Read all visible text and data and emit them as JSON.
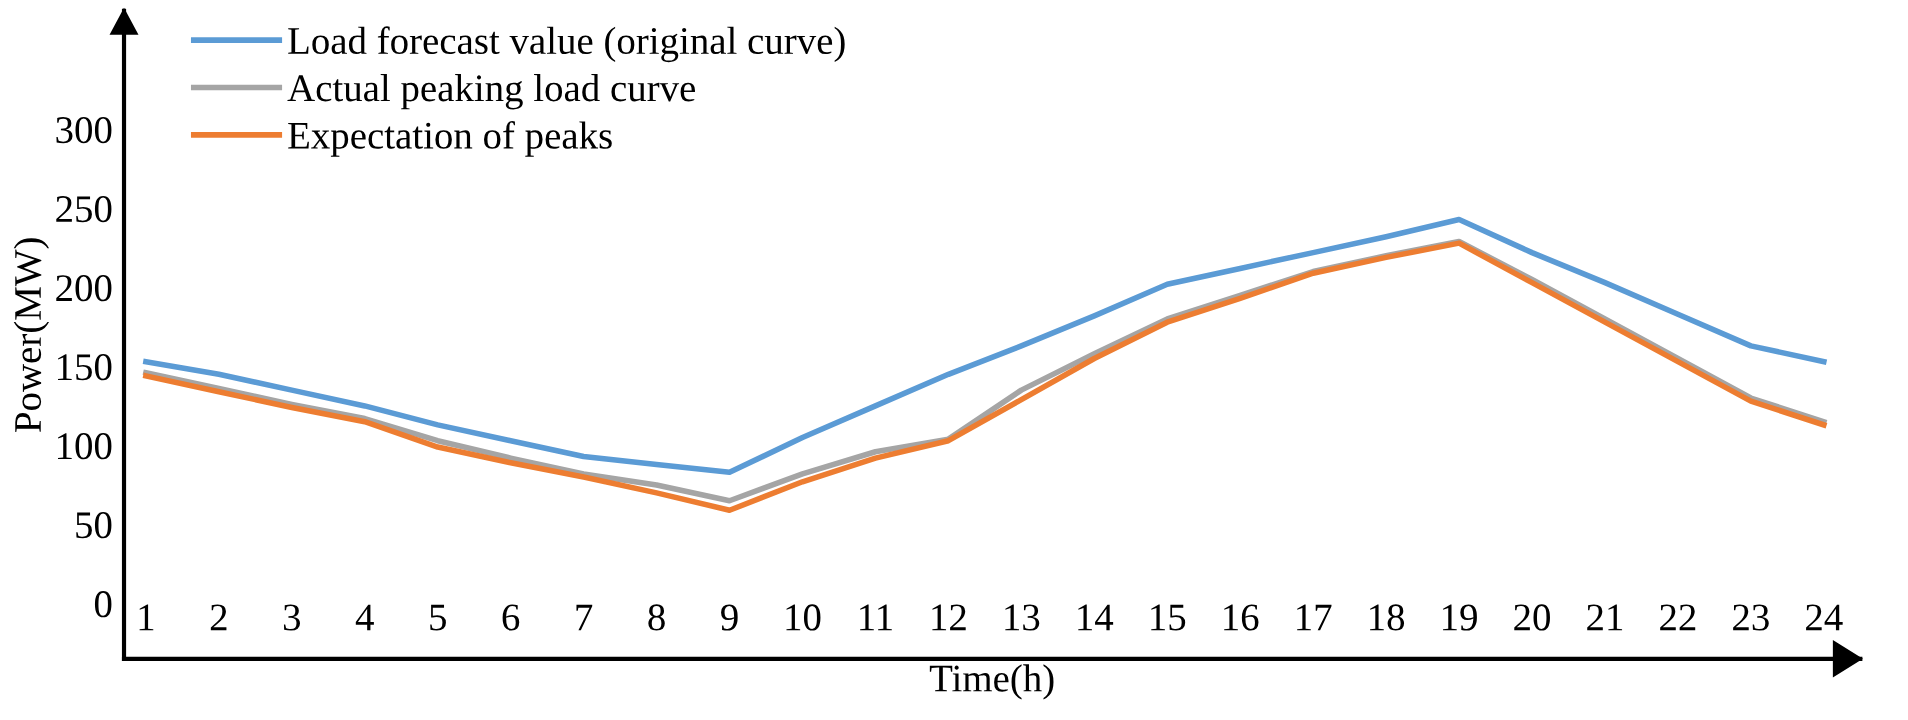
{
  "chart_data": {
    "type": "line",
    "xlabel": "Time(h)",
    "ylabel": "Power(MW)",
    "categories": [
      "1",
      "2",
      "3",
      "4",
      "5",
      "6",
      "7",
      "8",
      "9",
      "10",
      "11",
      "12",
      "13",
      "14",
      "15",
      "16",
      "17",
      "18",
      "19",
      "20",
      "21",
      "22",
      "23",
      "24"
    ],
    "series": [
      {
        "name": "Load forecast value (original curve)",
        "color": "#5b9bd5",
        "values": [
          153,
          145,
          135,
          125,
          113,
          103,
          93,
          88,
          83,
          105,
          125,
          145,
          163,
          182,
          202,
          212,
          222,
          232,
          243,
          222,
          203,
          183,
          163,
          153
        ]
      },
      {
        "name": "Actual peaking load curve",
        "color": "#a5a5a5",
        "values": [
          146,
          136,
          126,
          117,
          103,
          92,
          82,
          75,
          65,
          82,
          96,
          104,
          135,
          158,
          180,
          195,
          210,
          220,
          229,
          205,
          180,
          155,
          130,
          115
        ]
      },
      {
        "name": "Expectation of peaks",
        "color": "#ed7d31",
        "values": [
          144,
          134,
          124,
          115,
          99,
          89,
          80,
          70,
          59,
          77,
          92,
          103,
          129,
          155,
          178,
          193,
          209,
          219,
          228,
          203,
          178,
          153,
          128,
          113
        ]
      }
    ],
    "ylim": [
      -35,
      375
    ],
    "yticks": [
      0,
      50,
      100,
      150,
      200,
      250,
      300
    ],
    "grid": false,
    "legend": "top left",
    "marker": "none",
    "line_style": "solid"
  }
}
